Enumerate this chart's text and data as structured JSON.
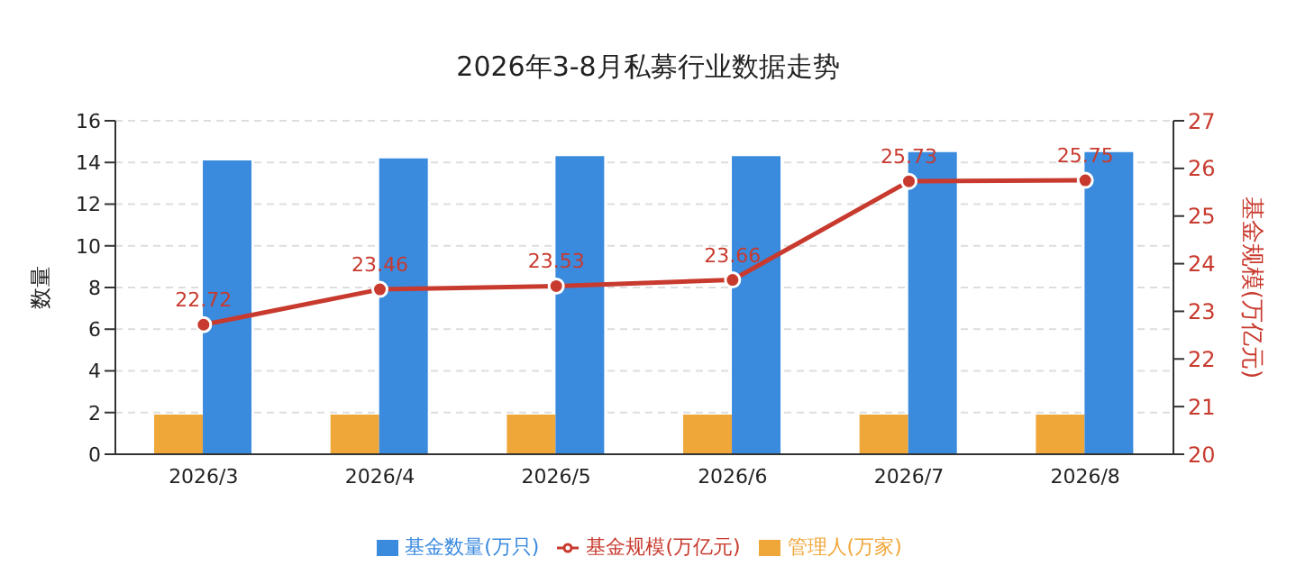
{
  "chart_data": {
    "type": "bar",
    "title": "2026年3-8月私募行业数据走势",
    "ylabel": "数量",
    "y2label": "基金规模(万亿元)",
    "categories": [
      "2026/3",
      "2026/4",
      "2026/5",
      "2026/6",
      "2026/7",
      "2026/8"
    ],
    "series": [
      {
        "name": "管理人(万家)",
        "color": "#f0a73a",
        "values": [
          1.9,
          1.9,
          1.9,
          1.9,
          1.9,
          1.9
        ]
      },
      {
        "name": "基金数量(万只)",
        "color": "#3a8ade",
        "values": [
          14.1,
          14.2,
          14.3,
          14.3,
          14.5,
          14.5
        ]
      },
      {
        "name": "基金规模(万亿元)",
        "type": "line",
        "axis": "y2",
        "color": "#c83a2e",
        "values": [
          22.72,
          23.46,
          23.53,
          23.66,
          25.73,
          25.75
        ],
        "data_labels": true,
        "marker": "circle"
      }
    ],
    "ylim": [
      0,
      16
    ],
    "yticks": [
      0,
      2,
      4,
      6,
      8,
      10,
      12,
      14,
      16
    ],
    "y2lim": [
      20,
      27
    ],
    "y2ticks": [
      20,
      21,
      22,
      23,
      24,
      25,
      26,
      27
    ],
    "grid": "y",
    "legend": "bottom"
  }
}
